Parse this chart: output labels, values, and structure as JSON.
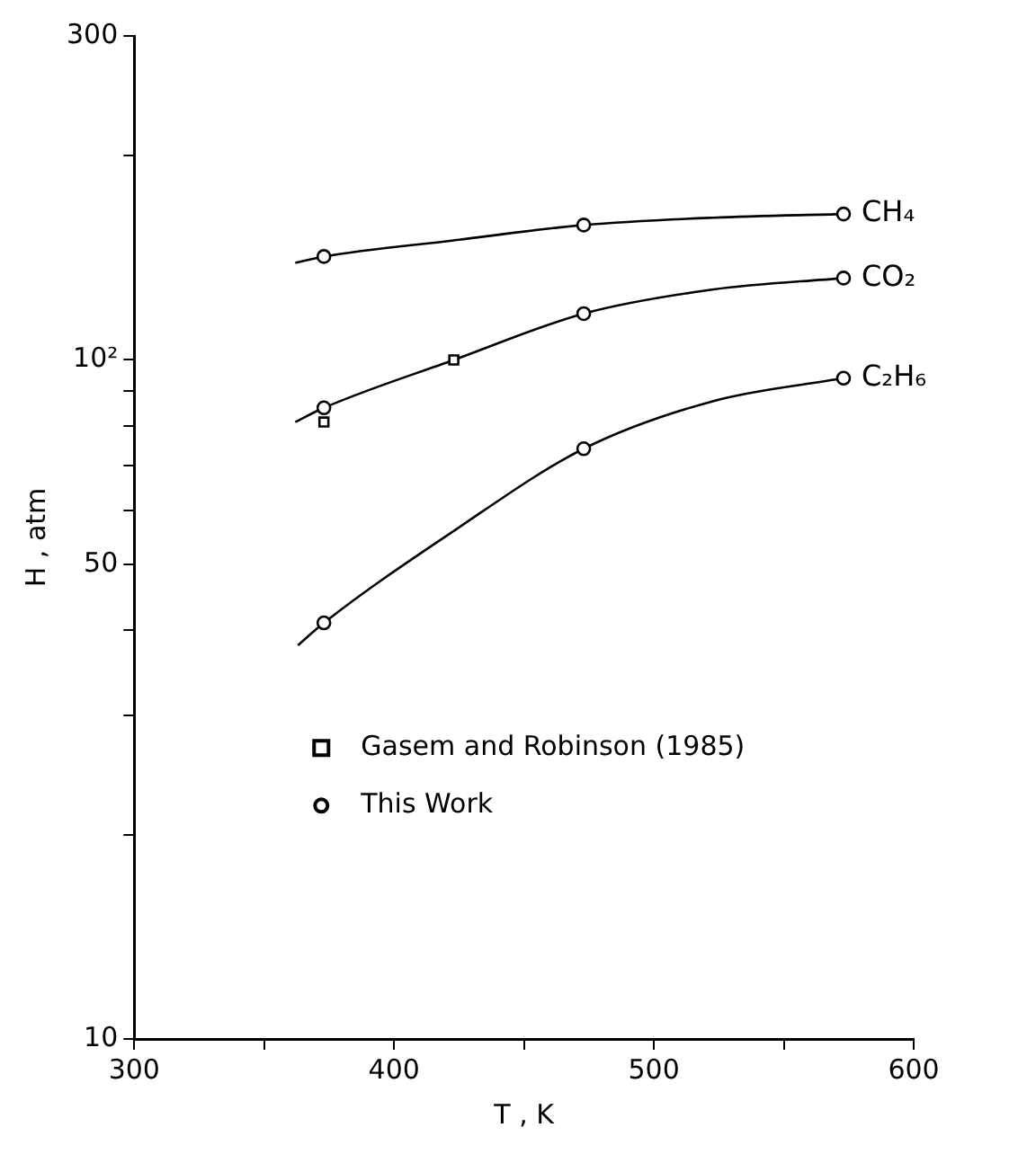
{
  "chart_data": {
    "type": "line",
    "xlabel": "T , K",
    "ylabel": "H , atm",
    "log": "y",
    "grid": false,
    "legend": "bottom",
    "xlim": [
      300,
      600
    ],
    "xticks": [
      300,
      {
        "value": 350,
        "label": null
      },
      400,
      {
        "value": 450,
        "label": null
      },
      500,
      {
        "value": 550,
        "label": null
      },
      600
    ],
    "ylim": [
      10,
      300
    ],
    "yticks": [
      10,
      {
        "value": 20,
        "label": null
      },
      {
        "value": 30,
        "label": null
      },
      {
        "value": 40,
        "label": null
      },
      50,
      {
        "value": 60,
        "label": null
      },
      {
        "value": 70,
        "label": null
      },
      {
        "value": 80,
        "label": null
      },
      {
        "value": 90,
        "label": null
      },
      {
        "value": 100,
        "label": "10²"
      },
      {
        "value": 200,
        "label": null
      },
      300
    ],
    "series": [
      {
        "name": "CH₄",
        "type": "line",
        "marker": "none",
        "color": "#000000",
        "x": [
          362,
          373,
          423,
          473,
          523,
          573
        ],
        "values": [
          139,
          142,
          150,
          158,
          162,
          164
        ]
      },
      {
        "name": "CO₂",
        "type": "line",
        "marker": "none",
        "color": "#000000",
        "x": [
          362,
          373,
          423,
          473,
          523,
          573
        ],
        "values": [
          81,
          85,
          100,
          117,
          127,
          132
        ]
      },
      {
        "name": "C₂H₆",
        "type": "line",
        "marker": "none",
        "color": "#000000",
        "x": [
          363,
          373,
          423,
          473,
          523,
          573
        ],
        "values": [
          38,
          41,
          56,
          74,
          87,
          94
        ]
      },
      {
        "name": "Gasem and Robinson (1985)",
        "type": "scatter",
        "marker": "square",
        "color": "#000000",
        "x": [
          373,
          423
        ],
        "values": [
          81,
          100
        ]
      },
      {
        "name": "This Work",
        "type": "scatter",
        "marker": "circle",
        "color": "#000000",
        "x": [
          373,
          473,
          573,
          373,
          473,
          573,
          373,
          473,
          573
        ],
        "values": [
          142,
          158,
          164,
          85,
          117,
          132,
          41,
          74,
          94
        ]
      }
    ]
  }
}
